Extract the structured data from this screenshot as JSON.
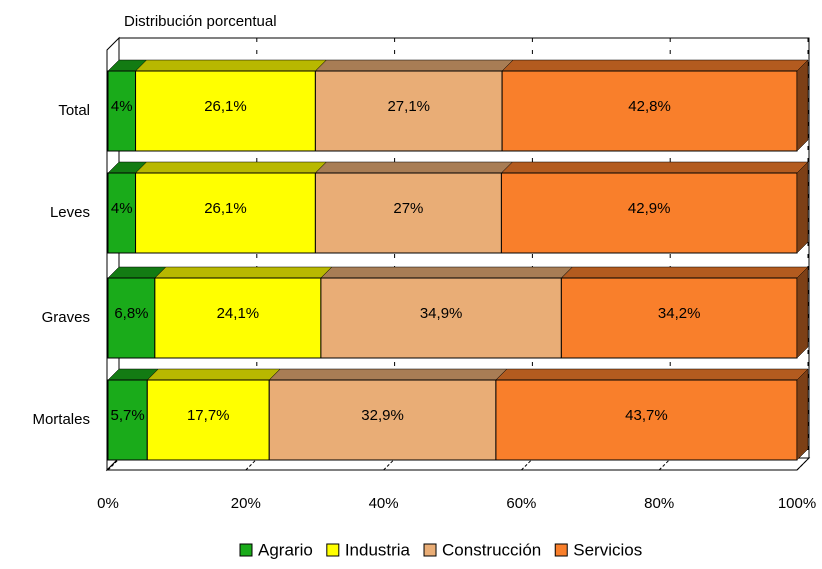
{
  "chart_data": {
    "type": "stacked-bar-3d-horizontal",
    "title": "Distribución porcentual",
    "categories": [
      "Total",
      "Leves",
      "Graves",
      "Mortales"
    ],
    "series": [
      {
        "name": "Agrario",
        "color": "#1aab1a",
        "values": [
          4,
          4,
          6.8,
          5.7
        ],
        "value_labels": [
          "4%",
          "4%",
          "6,8%",
          "5,7%"
        ]
      },
      {
        "name": "Industria",
        "color": "#ffff00",
        "values": [
          26.1,
          26.1,
          24.1,
          17.7
        ],
        "value_labels": [
          "26,1%",
          "26,1%",
          "24,1%",
          "17,7%"
        ]
      },
      {
        "name": "Construcción",
        "color": "#e9ad76",
        "values": [
          27.1,
          27,
          34.9,
          32.9
        ],
        "value_labels": [
          "27,1%",
          "27%",
          "34,9%",
          "32,9%"
        ]
      },
      {
        "name": "Servicios",
        "color": "#f97f2b",
        "values": [
          42.8,
          42.9,
          34.2,
          43.7
        ],
        "value_labels": [
          "42,8%",
          "42,9%",
          "34,2%",
          "43,7%"
        ]
      }
    ],
    "xlim": [
      0,
      100
    ],
    "xticks": [
      {
        "value": 0,
        "label": "0%"
      },
      {
        "value": 20,
        "label": "20%"
      },
      {
        "value": 40,
        "label": "40%"
      },
      {
        "value": 60,
        "label": "60%"
      },
      {
        "value": 80,
        "label": "80%"
      },
      {
        "value": 100,
        "label": "100%"
      }
    ],
    "grid": true,
    "legend": "bottom"
  }
}
